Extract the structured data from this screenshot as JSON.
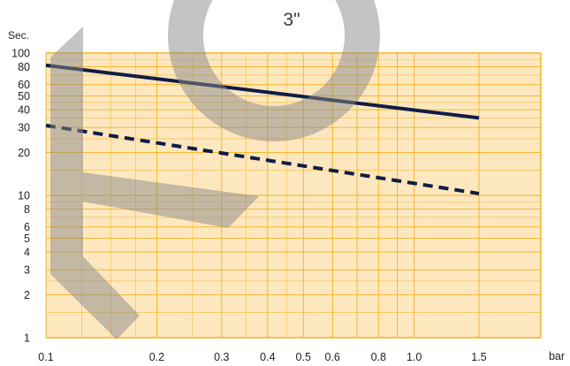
{
  "chart_data": {
    "type": "line",
    "title": "3\"",
    "ylabel": "Sec.",
    "xlabel": "bar",
    "x_scale": "log",
    "y_scale": "log",
    "xlim": [
      0.1,
      1.5
    ],
    "ylim": [
      1,
      100
    ],
    "grid": true,
    "x_ticks": [
      0.1,
      0.2,
      0.3,
      0.4,
      0.5,
      0.6,
      0.8,
      1.0,
      1.5
    ],
    "x_tick_labels": [
      "0.1",
      "0.2",
      "0.3",
      "0.4",
      "0.5",
      "0.6",
      "0.8",
      "1.0",
      "1.5"
    ],
    "y_ticks": [
      1,
      2,
      3,
      4,
      5,
      6,
      8,
      10,
      20,
      30,
      40,
      50,
      60,
      80,
      100
    ],
    "y_tick_labels": [
      "1",
      "2",
      "3",
      "4",
      "5",
      "6",
      "8",
      "10",
      "20",
      "30",
      "40",
      "50",
      "60",
      "80",
      "100"
    ],
    "series": [
      {
        "style": "solid",
        "color": "#0f1d45",
        "x": [
          0.1,
          1.5
        ],
        "y": [
          82,
          35
        ]
      },
      {
        "style": "dashed",
        "color": "#0f1d45",
        "x": [
          0.1,
          1.5
        ],
        "y": [
          31,
          10.3
        ]
      }
    ],
    "colors": {
      "plot_background": "#fde7bf",
      "grid": "#f5b21c",
      "watermark": "#8a8a8a"
    },
    "watermark": "gray circular logo overlay (partial 'O' ring and a 'K'-like stroke shape)"
  }
}
